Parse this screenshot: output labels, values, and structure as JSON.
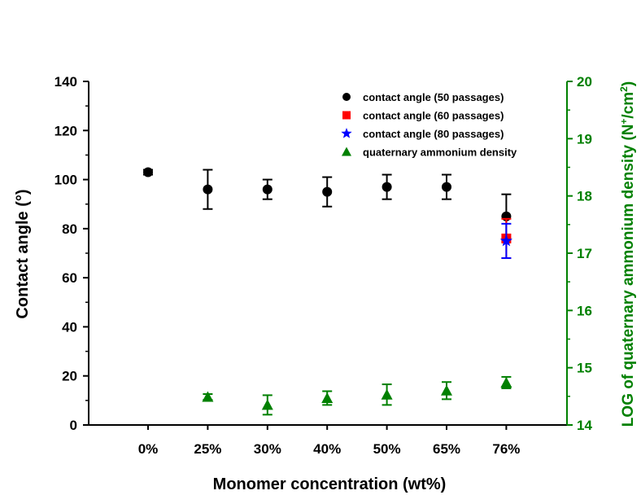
{
  "chart_data": {
    "type": "scatter",
    "categories": [
      "0%",
      "25%",
      "30%",
      "40%",
      "50%",
      "65%",
      "76%"
    ],
    "xlabel": "Monomer concentration (wt%)",
    "ylabel": "Contact angle (°)",
    "y2label_main": "LOG of quaternary ammonium density (N",
    "y2label_sup1": "+",
    "y2label_mid": "/cm",
    "y2label_sup2": "2",
    "y2label_end": ")",
    "ylim": [
      0,
      140
    ],
    "y2lim": [
      14,
      20
    ],
    "yticks": [
      0,
      20,
      40,
      60,
      80,
      100,
      120,
      140
    ],
    "y2ticks": [
      14,
      15,
      16,
      17,
      18,
      19,
      20
    ],
    "grid": false,
    "legend_position": "top-right",
    "colors": {
      "axis_left": "#000000",
      "axis_right": "#008000"
    },
    "series": [
      {
        "name": "contact angle (50 passages)",
        "axis": "left",
        "marker": "circle",
        "color": "#000000",
        "points": [
          {
            "category": "0%",
            "y": 103,
            "err": 1
          },
          {
            "category": "25%",
            "y": 96,
            "err": 8
          },
          {
            "category": "30%",
            "y": 96,
            "err": 4
          },
          {
            "category": "40%",
            "y": 95,
            "err": 6
          },
          {
            "category": "50%",
            "y": 97,
            "err": 5
          },
          {
            "category": "65%",
            "y": 97,
            "err": 5
          },
          {
            "category": "76%",
            "y": 85,
            "err": 9
          }
        ]
      },
      {
        "name": "contact angle (60 passages)",
        "axis": "left",
        "marker": "square",
        "color": "#ff0000",
        "points": [
          {
            "category": "76%",
            "y": 76,
            "err": 8
          }
        ]
      },
      {
        "name": "contact angle (80 passages)",
        "axis": "left",
        "marker": "star",
        "color": "#0000ff",
        "points": [
          {
            "category": "76%",
            "y": 75,
            "err": 7
          }
        ]
      },
      {
        "name": "quaternary ammonium density",
        "axis": "right",
        "marker": "triangle",
        "color": "#008000",
        "points": [
          {
            "category": "25%",
            "y": 14.49,
            "err": 0.05
          },
          {
            "category": "30%",
            "y": 14.35,
            "err": 0.17
          },
          {
            "category": "40%",
            "y": 14.47,
            "err": 0.12
          },
          {
            "category": "50%",
            "y": 14.53,
            "err": 0.18
          },
          {
            "category": "65%",
            "y": 14.6,
            "err": 0.15
          },
          {
            "category": "76%",
            "y": 14.74,
            "err": 0.1
          }
        ]
      }
    ]
  }
}
